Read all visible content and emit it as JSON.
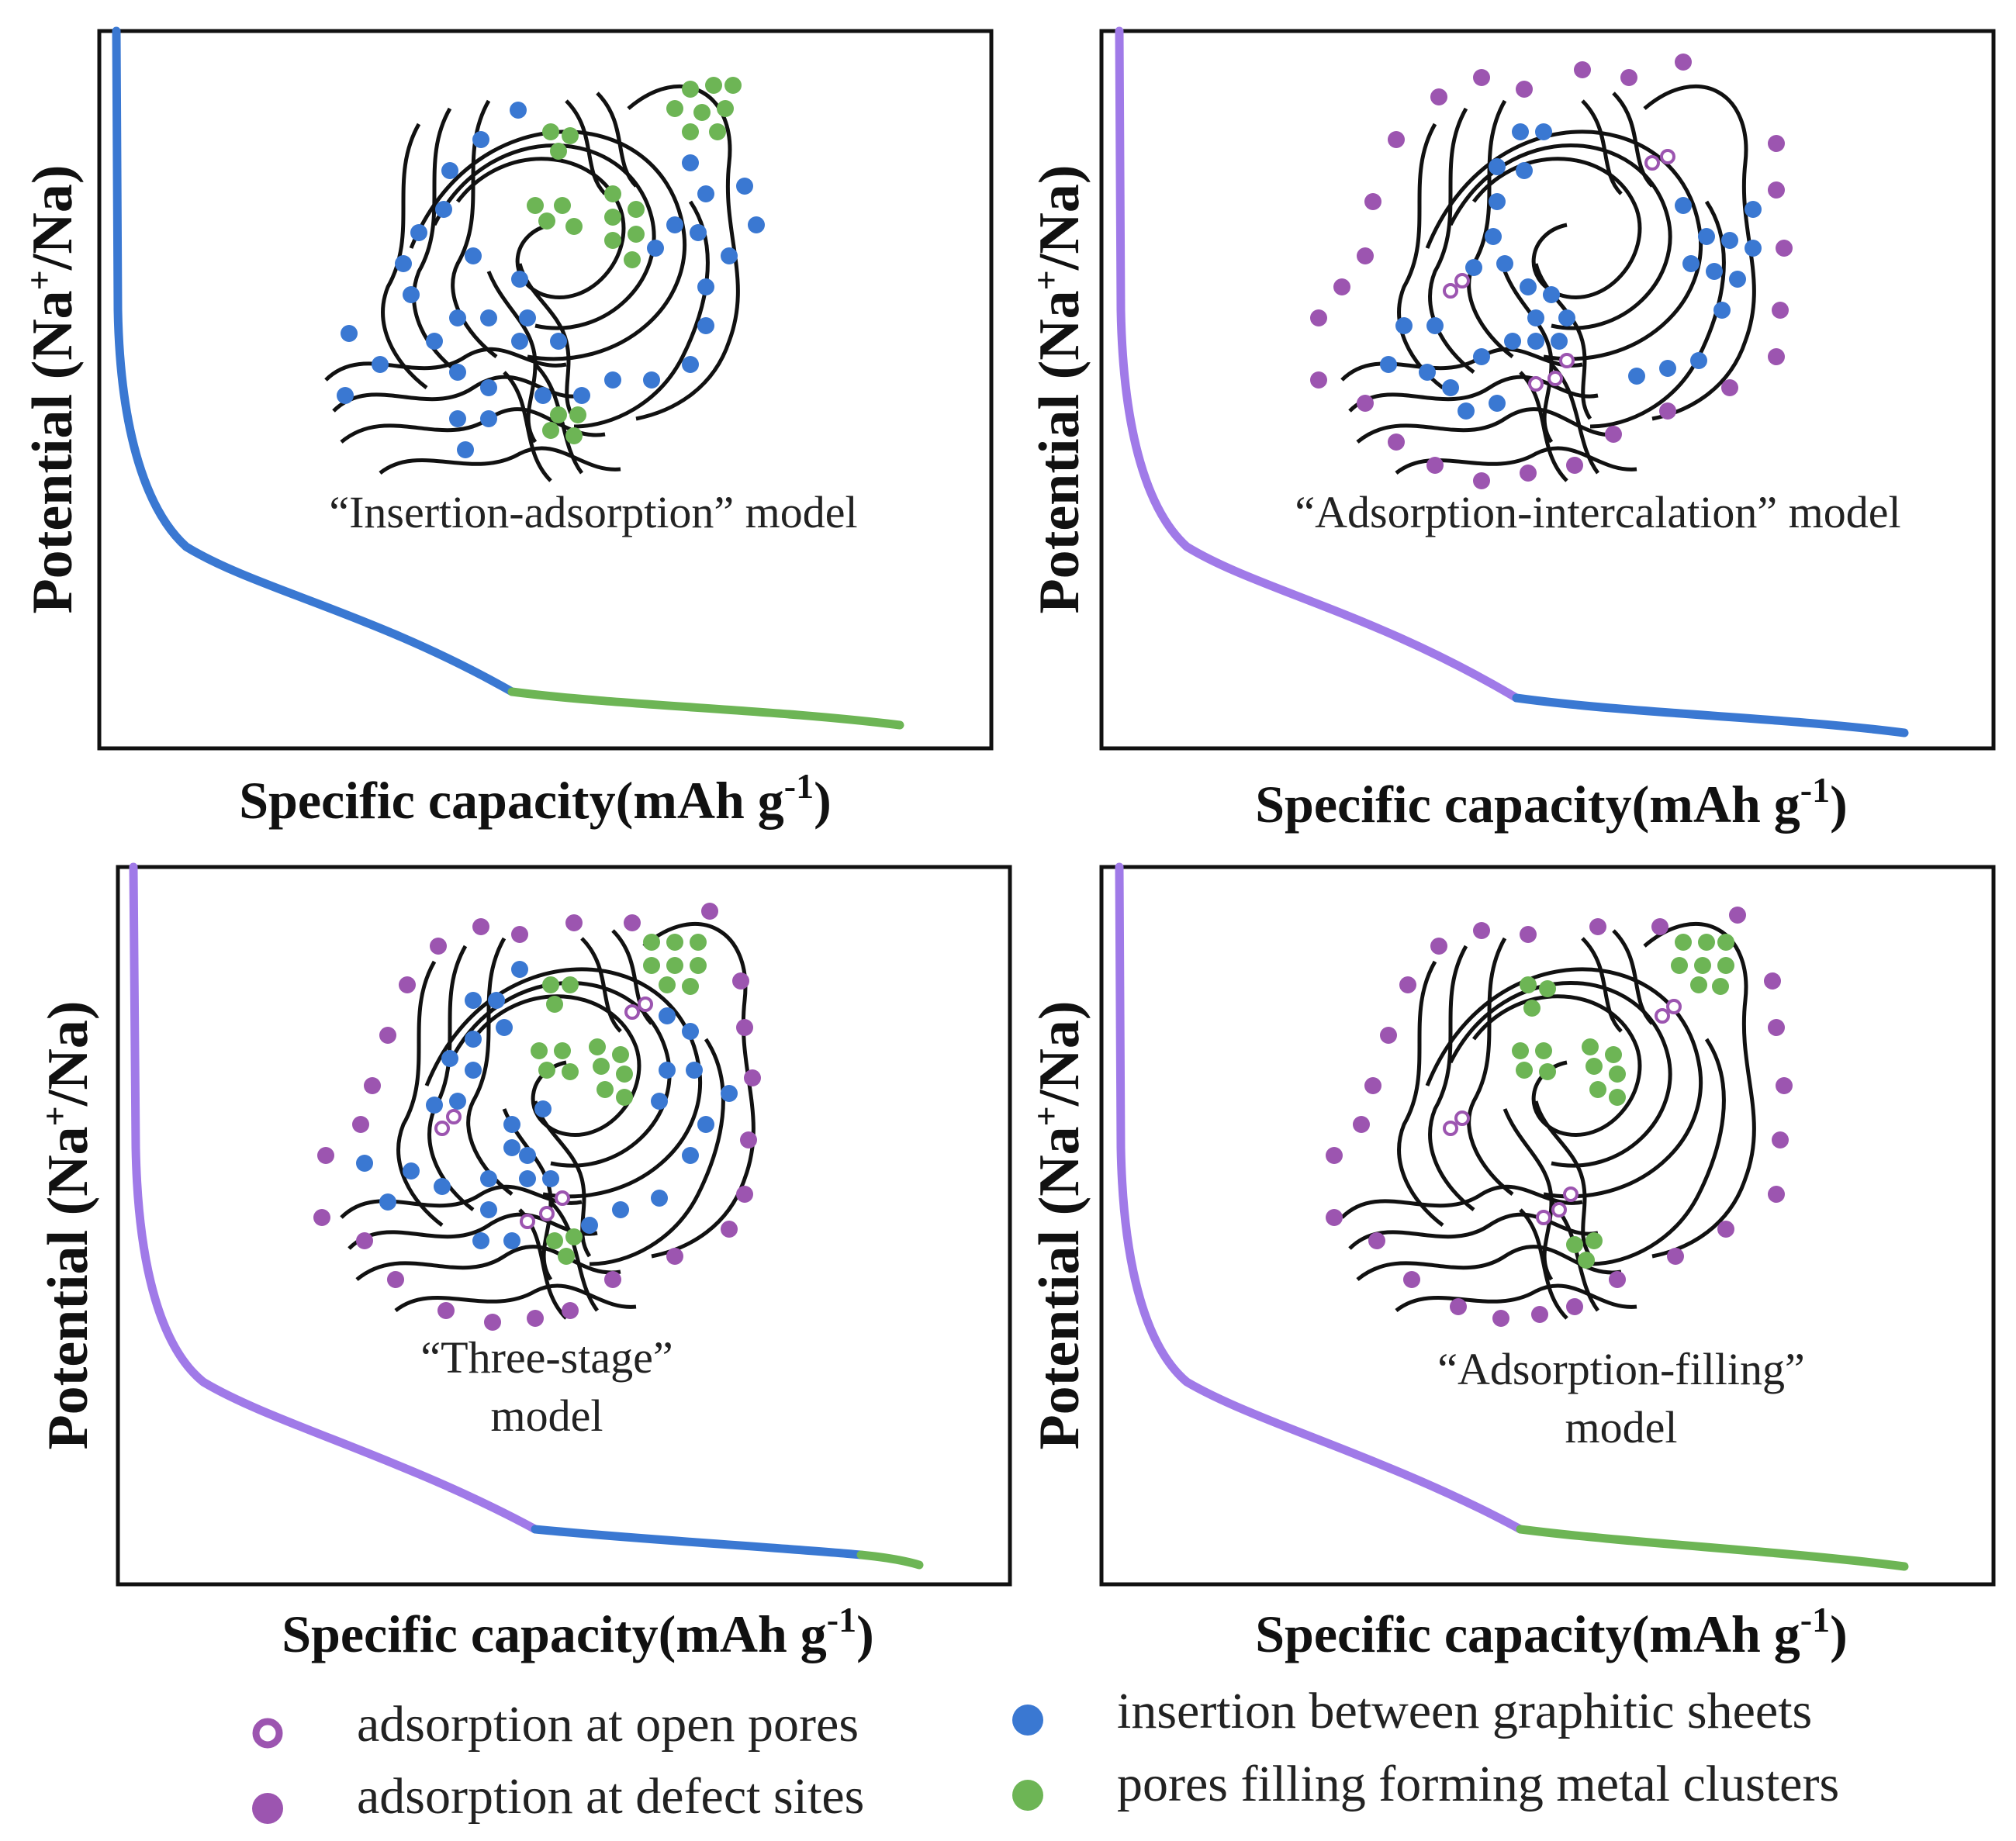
{
  "colors": {
    "blue": "#3a78d2",
    "green": "#6db555",
    "purple": "#a07ae8",
    "defect_purple": "#9c55b0",
    "axis": "#111111"
  },
  "panels": [
    {
      "model_label_lines": [
        "“Insertion-adsorption” model"
      ],
      "y_label": "Potential (Na",
      "y_label_sup": "+",
      "y_label_tail": "/Na)",
      "x_label": "Specific capacity(mAh g",
      "x_label_sup": "-1",
      "x_label_tail": ")",
      "curve_segments": [
        {
          "color": "blue",
          "from": 0.0,
          "to": 0.62
        },
        {
          "color": "green",
          "from": 0.62,
          "to": 1.0
        }
      ]
    },
    {
      "model_label_lines": [
        "“Adsorption-intercalation” model"
      ],
      "y_label": "Potential (Na",
      "y_label_sup": "+",
      "y_label_tail": "/Na)",
      "x_label": "Specific capacity(mAh g",
      "x_label_sup": "-1",
      "x_label_tail": ")",
      "curve_segments": [
        {
          "color": "purple",
          "from": 0.0,
          "to": 0.62
        },
        {
          "color": "blue",
          "from": 0.62,
          "to": 1.0
        }
      ]
    },
    {
      "model_label_lines": [
        "“Three-stage”",
        "model"
      ],
      "y_label": "Potential (Na",
      "y_label_sup": "+",
      "y_label_tail": "/Na)",
      "x_label": "Specific capacity(mAh g",
      "x_label_sup": "-1",
      "x_label_tail": ")",
      "curve_segments": [
        {
          "color": "purple",
          "from": 0.0,
          "to": 0.62
        },
        {
          "color": "blue",
          "from": 0.62,
          "to": 0.9
        },
        {
          "color": "green",
          "from": 0.9,
          "to": 1.0
        }
      ]
    },
    {
      "model_label_lines": [
        "“Adsorption-filling”",
        "model"
      ],
      "y_label": "Potential (Na",
      "y_label_sup": "+",
      "y_label_tail": "/Na)",
      "x_label": "Specific capacity(mAh g",
      "x_label_sup": "-1",
      "x_label_tail": ")",
      "curve_segments": [
        {
          "color": "purple",
          "from": 0.0,
          "to": 0.62
        },
        {
          "color": "green",
          "from": 0.62,
          "to": 1.0
        }
      ]
    }
  ],
  "legend": [
    {
      "marker": "open-circle",
      "color": "defect_purple",
      "label": "adsorption at open pores"
    },
    {
      "marker": "filled-circle",
      "color": "defect_purple",
      "label": "adsorption at defect sites"
    },
    {
      "marker": "filled-circle",
      "color": "blue",
      "label": "insertion between graphitic sheets"
    },
    {
      "marker": "filled-circle",
      "color": "green",
      "label": "pores filling forming metal clusters"
    }
  ]
}
